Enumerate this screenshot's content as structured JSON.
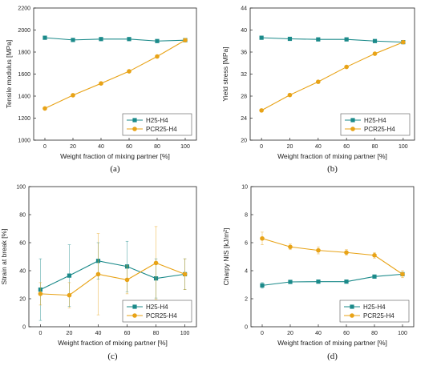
{
  "colors": {
    "h25": "#1b8a8a",
    "pcr": "#e8a317"
  },
  "chart_data": [
    {
      "type": "line",
      "label": "(a)",
      "xlabel": "Weight fraction of mixing partner [%]",
      "ylabel": "Tensile modulus [MPa]",
      "x": [
        0,
        20,
        40,
        60,
        80,
        100
      ],
      "xticks": [
        "0",
        "20",
        "40",
        "60",
        "80",
        "100"
      ],
      "xlim": [
        -8,
        108
      ],
      "ylim": [
        1000,
        2200
      ],
      "yticks": [
        "1000",
        "1200",
        "1400",
        "1600",
        "1800",
        "2000",
        "2200"
      ],
      "legend": "bottom-right",
      "series": [
        {
          "name": "H25-H4",
          "values": [
            1930,
            1910,
            1918,
            1918,
            1900,
            1908
          ]
        },
        {
          "name": "PCR25-H4",
          "values": [
            1288,
            1408,
            1515,
            1625,
            1760,
            1908
          ]
        }
      ]
    },
    {
      "type": "line",
      "label": "(b)",
      "xlabel": "Weight fraction of mixing partner [%]",
      "ylabel": "Yield stress [MPa]",
      "x": [
        0,
        20,
        40,
        60,
        80,
        100
      ],
      "xticks": [
        "0",
        "20",
        "40",
        "60",
        "80",
        "100"
      ],
      "xlim": [
        -8,
        108
      ],
      "ylim": [
        20,
        44
      ],
      "yticks": [
        "20",
        "24",
        "28",
        "32",
        "36",
        "40",
        "44"
      ],
      "legend": "bottom-right",
      "series": [
        {
          "name": "H25-H4",
          "values": [
            38.6,
            38.4,
            38.3,
            38.3,
            38.0,
            37.8
          ]
        },
        {
          "name": "PCR25-H4",
          "values": [
            25.4,
            28.2,
            30.6,
            33.3,
            35.7,
            37.8
          ]
        }
      ]
    },
    {
      "type": "line",
      "label": "(c)",
      "xlabel": "Weight fraction of mixing partner [%]",
      "ylabel": "Strain at break [%]",
      "x": [
        0,
        20,
        40,
        60,
        80,
        100
      ],
      "xticks": [
        "0",
        "20",
        "40",
        "60",
        "80",
        "100"
      ],
      "xlim": [
        -8,
        108
      ],
      "ylim": [
        0,
        100
      ],
      "yticks": [
        "0",
        "20",
        "40",
        "60",
        "80",
        "100"
      ],
      "legend": "bottom-right",
      "series": [
        {
          "name": "H25-H4",
          "values": [
            26.5,
            36.5,
            47,
            43,
            34.5,
            37.5
          ],
          "err": [
            22,
            22,
            13,
            18,
            14,
            11
          ]
        },
        {
          "name": "PCR25-H4",
          "values": [
            23.5,
            22.5,
            37.5,
            33.5,
            45.5,
            37.5
          ],
          "err": [
            8,
            9,
            29,
            10,
            26,
            11
          ]
        }
      ]
    },
    {
      "type": "line",
      "label": "(d)",
      "xlabel": "Weight fraction of mixing partner [%]",
      "ylabel": "Charpy NIS [kJ/m²]",
      "x": [
        0,
        20,
        40,
        60,
        80,
        100
      ],
      "xticks": [
        "0",
        "20",
        "40",
        "60",
        "80",
        "100"
      ],
      "xlim": [
        -8,
        108
      ],
      "ylim": [
        0,
        10
      ],
      "yticks": [
        "0",
        "2",
        "4",
        "6",
        "8",
        "10"
      ],
      "legend": "bottom-right",
      "series": [
        {
          "name": "H25-H4",
          "values": [
            2.95,
            3.2,
            3.22,
            3.22,
            3.58,
            3.75
          ],
          "err": [
            0.2,
            0.1,
            0.1,
            0.1,
            0.1,
            0.1
          ]
        },
        {
          "name": "PCR25-H4",
          "values": [
            6.3,
            5.7,
            5.45,
            5.3,
            5.1,
            3.75
          ],
          "err": [
            0.45,
            0.2,
            0.25,
            0.2,
            0.2,
            0.25
          ]
        }
      ]
    }
  ]
}
